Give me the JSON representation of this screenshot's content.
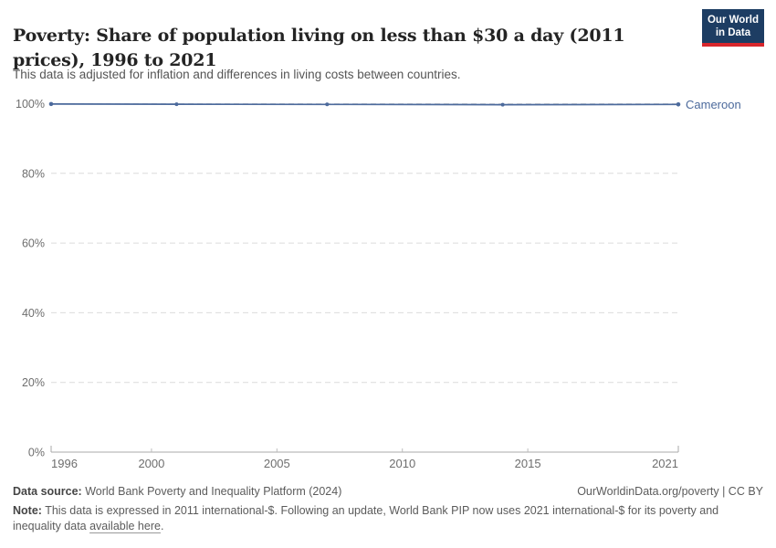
{
  "header": {
    "title": "Poverty: Share of population living on less than $30 a day (2011 prices), 1996 to 2021",
    "subtitle": "This data is adjusted for inflation and differences in living costs between countries.",
    "logo": {
      "line1": "Our World",
      "line2": "in Data",
      "bg_color": "#1d3d63",
      "bar_color": "#d8262c"
    }
  },
  "chart_data": {
    "type": "line",
    "title": "Poverty: Share of population living on less than $30 a day (2011 prices), 1996 to 2021",
    "xlabel": "",
    "ylabel": "",
    "x_range": [
      1996,
      2021
    ],
    "y_range": [
      0,
      100
    ],
    "grid": "horizontal-dashed",
    "legend_position": "end-of-line-label",
    "x_ticks": [
      {
        "value": 1996,
        "label": "1996"
      },
      {
        "value": 2000,
        "label": "2000"
      },
      {
        "value": 2005,
        "label": "2005"
      },
      {
        "value": 2010,
        "label": "2010"
      },
      {
        "value": 2015,
        "label": "2015"
      },
      {
        "value": 2021,
        "label": "2021"
      }
    ],
    "y_ticks": [
      {
        "value": 0,
        "label": "0%"
      },
      {
        "value": 20,
        "label": "20%"
      },
      {
        "value": 40,
        "label": "40%"
      },
      {
        "value": 60,
        "label": "60%"
      },
      {
        "value": 80,
        "label": "80%"
      },
      {
        "value": 100,
        "label": "100%"
      }
    ],
    "series": [
      {
        "name": "Cameroon",
        "color": "#4C6A9C",
        "points": [
          {
            "x": 1996,
            "y": 99.9
          },
          {
            "x": 2001,
            "y": 99.85
          },
          {
            "x": 2007,
            "y": 99.8
          },
          {
            "x": 2014,
            "y": 99.7
          },
          {
            "x": 2021,
            "y": 99.8
          }
        ]
      }
    ],
    "colors": {
      "grid": "#dcdcdc",
      "axis": "#a8a8a8",
      "tick_text": "#6e6e6e"
    }
  },
  "footer": {
    "data_source_label": "Data source:",
    "data_source": "World Bank Poverty and Inequality Platform (2024)",
    "credit": "OurWorldinData.org/poverty | CC BY",
    "note_label": "Note:",
    "note_text": "This data is expressed in 2011 international-$. Following an update, World Bank PIP now uses 2021 international-$ for its poverty and inequality data",
    "note_link": "available here",
    "note_suffix": "."
  }
}
